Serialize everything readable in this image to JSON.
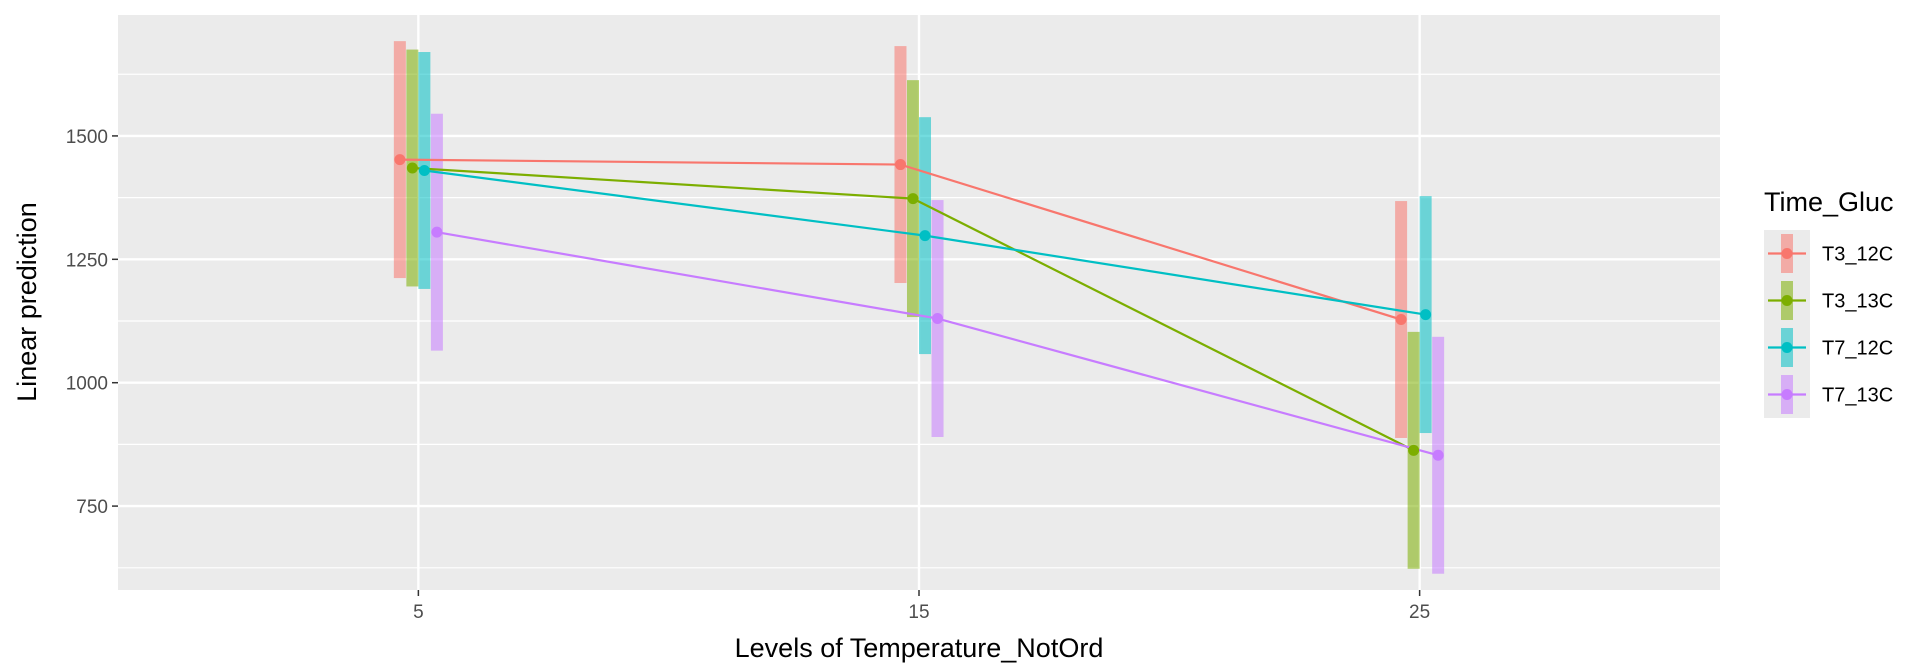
{
  "chart_data": {
    "type": "line",
    "xlabel": "Levels of Temperature_NotOrd",
    "ylabel": "Linear prediction",
    "x": [
      5,
      15,
      25
    ],
    "x_tick_labels": [
      "5",
      "15",
      "25"
    ],
    "y_ticks": [
      750,
      1000,
      1250,
      1500
    ],
    "y_tick_labels": [
      "750",
      "1000",
      "1250",
      "1500"
    ],
    "xlim": [
      -1,
      31
    ],
    "ylim": [
      580,
      1745
    ],
    "grid": true,
    "error_bars": true,
    "legend": {
      "title": "Time_Gluc",
      "position": "right"
    },
    "series": [
      {
        "name": "T3_12C",
        "color": "#F8766D",
        "values": [
          1452,
          1442,
          1128
        ],
        "lower": [
          1212,
          1202,
          888
        ],
        "upper": [
          1692,
          1682,
          1368
        ]
      },
      {
        "name": "T3_13C",
        "color": "#7CAE00",
        "values": [
          1435,
          1373,
          863
        ],
        "lower": [
          1195,
          1133,
          623
        ],
        "upper": [
          1675,
          1613,
          1103
        ]
      },
      {
        "name": "T7_12C",
        "color": "#00BFC4",
        "values": [
          1430,
          1298,
          1138
        ],
        "lower": [
          1190,
          1058,
          898
        ],
        "upper": [
          1670,
          1538,
          1378
        ]
      },
      {
        "name": "T7_13C",
        "color": "#C77CFF",
        "values": [
          1305,
          1130,
          853
        ],
        "lower": [
          1065,
          890,
          613
        ],
        "upper": [
          1545,
          1370,
          1093
        ]
      }
    ]
  }
}
